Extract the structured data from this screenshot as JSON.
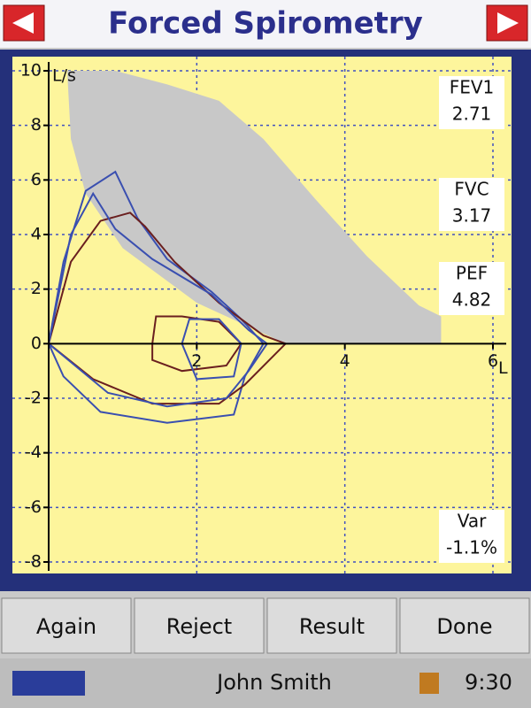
{
  "header": {
    "title": "Forced Spirometry"
  },
  "chart_data": {
    "type": "line",
    "y_axis_label": "L/s",
    "x_axis_label": "L",
    "xlim": [
      0,
      6
    ],
    "ylim": [
      -8,
      10
    ],
    "xticks": [
      2,
      4,
      6
    ],
    "yticks": [
      -8,
      -6,
      -4,
      -2,
      0,
      2,
      4,
      6,
      8,
      10
    ],
    "grid": true,
    "series": [
      {
        "color": "#c8c8c8",
        "fill": true,
        "x": [
          0.25,
          0.9,
          1.6,
          2.3,
          2.9,
          3.6,
          4.3,
          5.0,
          5.3,
          5.3,
          3.2,
          2.0,
          1.0,
          0.5,
          0.3,
          0.25
        ],
        "values": [
          10,
          10,
          9.5,
          8.9,
          7.5,
          5.3,
          3.2,
          1.4,
          1.0,
          0,
          0,
          1.5,
          3.5,
          5.5,
          7.5,
          10
        ]
      },
      {
        "color": "#3a4fb0",
        "x": [
          0,
          0.2,
          0.5,
          0.9,
          1.2,
          1.6,
          2.2,
          2.6,
          2.9,
          2.65,
          2.5,
          1.6,
          0.7,
          0.2,
          0
        ],
        "values": [
          0,
          3,
          5.6,
          6.3,
          4.6,
          3.1,
          1.9,
          0.9,
          0,
          -1.2,
          -2.6,
          -2.9,
          -2.5,
          -1.2,
          0
        ]
      },
      {
        "color": "#6a1f1f",
        "x": [
          0,
          0.3,
          0.7,
          1.1,
          1.3,
          1.7,
          2.3,
          2.9,
          3.2,
          2.65,
          2.3,
          1.4,
          0.6,
          0
        ],
        "values": [
          0,
          3,
          4.5,
          4.8,
          4.3,
          3.0,
          1.5,
          0.3,
          0,
          -1.5,
          -2.2,
          -2.2,
          -1.3,
          0
        ]
      },
      {
        "color": "#3a4fb0",
        "x": [
          0,
          0.3,
          0.6,
          0.9,
          1.4,
          2.2,
          2.7,
          2.95,
          2.7,
          2.4,
          1.6,
          0.8,
          0
        ],
        "values": [
          0,
          4,
          5.5,
          4.2,
          3.1,
          1.8,
          0.5,
          0,
          -1.0,
          -2.0,
          -2.3,
          -1.8,
          0
        ]
      },
      {
        "color": "#6a1f1f",
        "x": [
          1.4,
          1.45,
          1.8,
          2.3,
          2.6,
          2.4,
          1.8,
          1.4,
          1.4
        ],
        "values": [
          0,
          1.0,
          1.0,
          0.8,
          0,
          -0.8,
          -1.0,
          -0.6,
          0
        ]
      },
      {
        "color": "#3a4fb0",
        "x": [
          1.8,
          1.9,
          2.3,
          2.6,
          2.5,
          2.0,
          1.8
        ],
        "values": [
          0,
          0.9,
          0.9,
          0,
          -1.2,
          -1.3,
          0
        ]
      }
    ]
  },
  "stats": [
    {
      "label": "FEV1",
      "value": 2.71
    },
    {
      "label": "FVC",
      "value": 3.17
    },
    {
      "label": "PEF",
      "value": 4.82
    },
    {
      "label": "Var",
      "value": "-1.1%"
    }
  ],
  "buttons": [
    "Again",
    "Reject",
    "Result",
    "Done"
  ],
  "status": {
    "user": "John Smith",
    "time": "9:30"
  }
}
